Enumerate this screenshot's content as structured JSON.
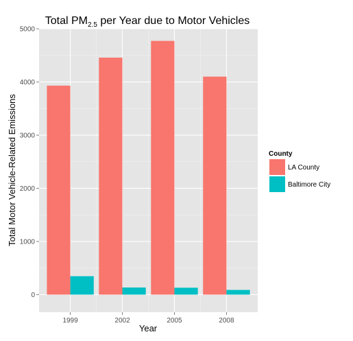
{
  "chart_data": {
    "type": "bar",
    "title": {
      "pre": "Total PM",
      "sub": "2.5",
      "post": " per Year due to Motor Vehicles"
    },
    "xlabel": "Year",
    "ylabel": "Total Motor Vehicle-Related Emissions",
    "categories": [
      "1999",
      "2002",
      "2005",
      "2008"
    ],
    "series": [
      {
        "name": "LA County",
        "color": "#F8766D",
        "values": [
          3931,
          4458,
          4773,
          4101
        ]
      },
      {
        "name": "Baltimore City",
        "color": "#00BFC4",
        "values": [
          347,
          134,
          130,
          89
        ]
      }
    ],
    "ylim": [
      -330,
      5000
    ],
    "yticks": [
      0,
      1000,
      2000,
      3000,
      4000,
      5000
    ],
    "grid": true,
    "panel_background": "#E5E5E5",
    "legend": {
      "title": "County",
      "position": "right"
    }
  }
}
